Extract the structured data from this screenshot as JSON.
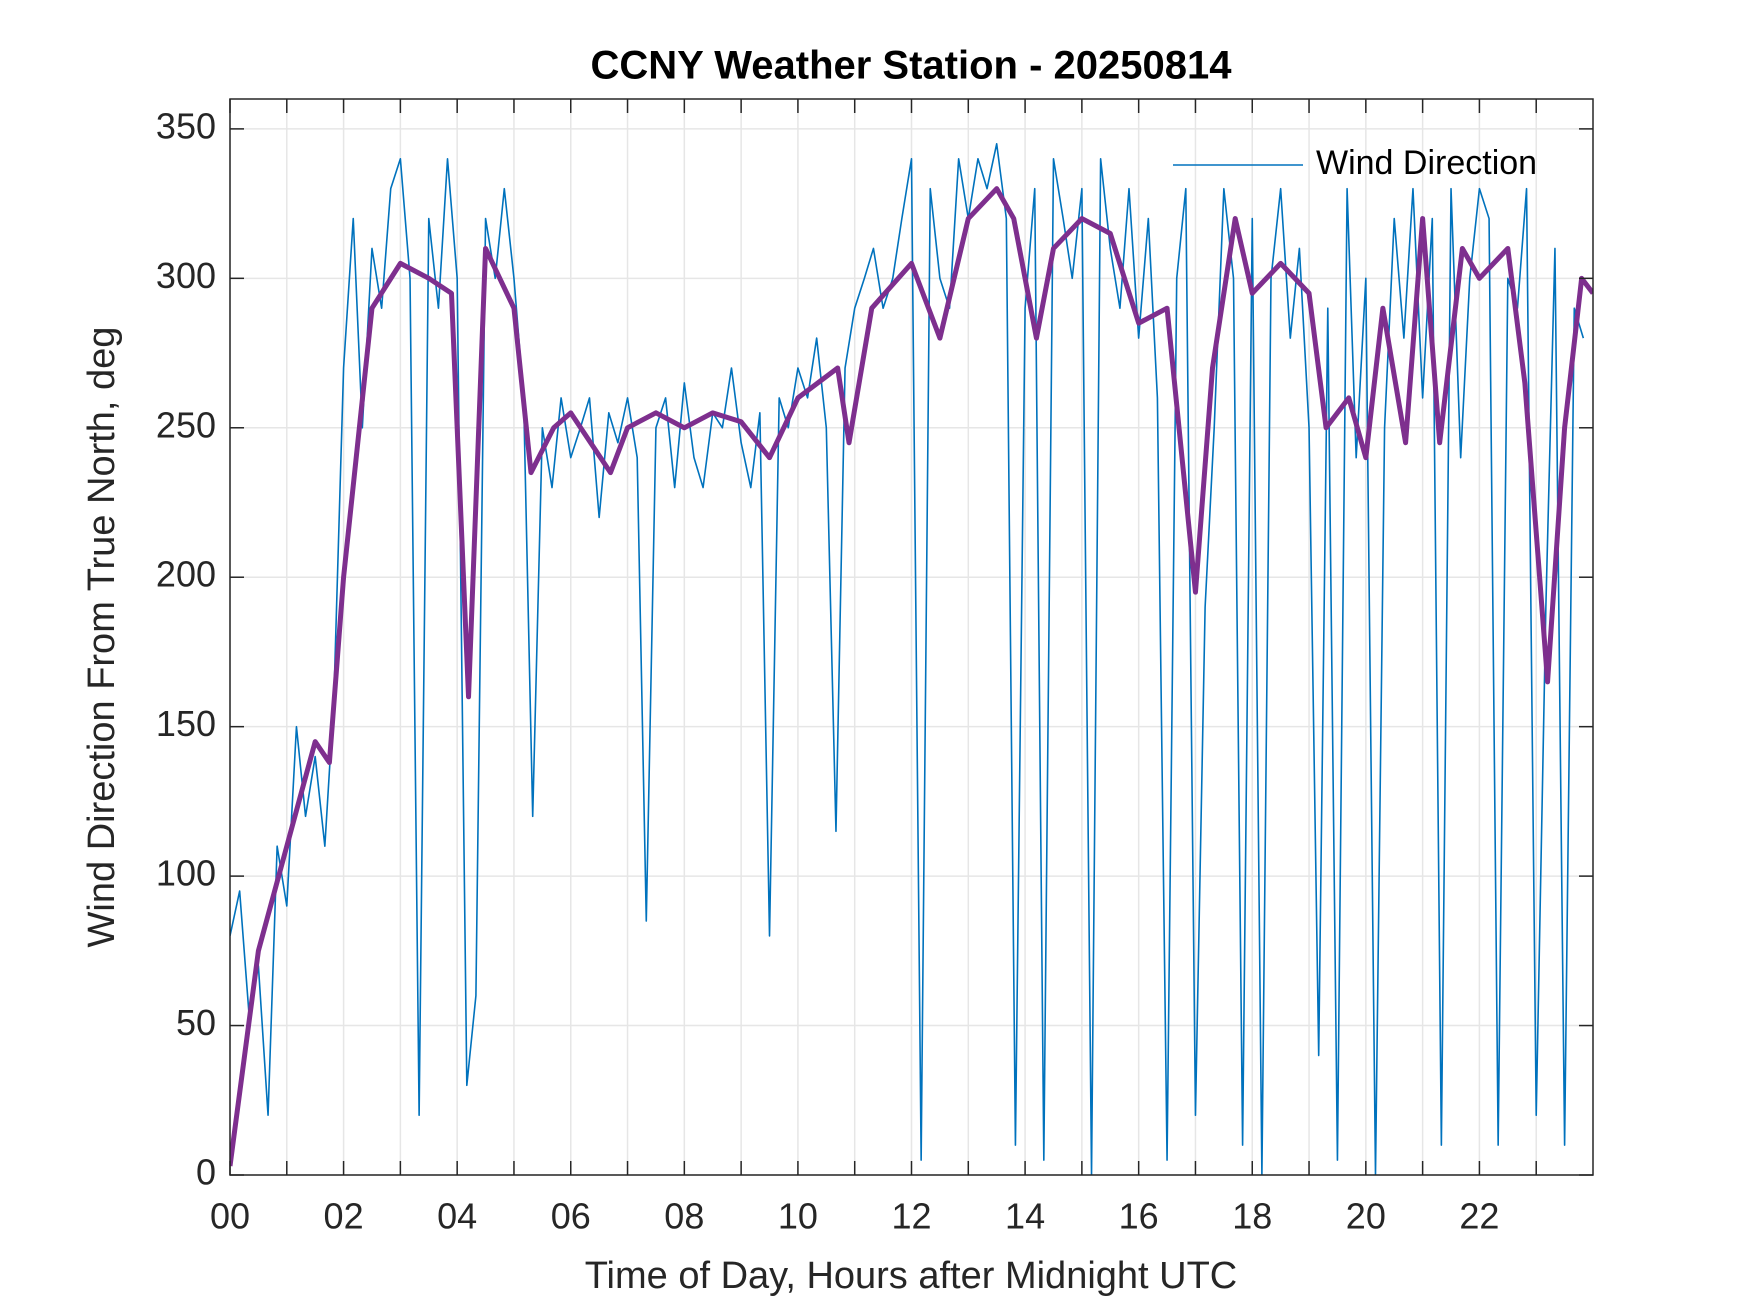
{
  "chart_data": {
    "type": "line",
    "title": "CCNY Weather Station - 20250814",
    "x_label": "Time of Day, Hours after Midnight UTC",
    "y_label": "Wind Direction From True North, deg",
    "xlim": [
      0,
      24
    ],
    "ylim": [
      0,
      360
    ],
    "xticks": [
      {
        "value": 0,
        "label": "00"
      },
      {
        "value": 2,
        "label": "02"
      },
      {
        "value": 4,
        "label": "04"
      },
      {
        "value": 6,
        "label": "06"
      },
      {
        "value": 8,
        "label": "08"
      },
      10,
      12,
      14,
      16,
      18,
      20,
      22
    ],
    "xminorticks": [
      1,
      3,
      5,
      7,
      9,
      11,
      13,
      15,
      17,
      19,
      21,
      23
    ],
    "yticks": [
      0,
      50,
      100,
      150,
      200,
      250,
      300,
      350
    ],
    "grid": true,
    "legend": "upper-right",
    "series": [
      {
        "name": "Wind Direction",
        "color": "#0072BD",
        "width": 1.6,
        "x": [
          0,
          0.17,
          0.33,
          0.5,
          0.67,
          0.83,
          1,
          1.17,
          1.33,
          1.5,
          1.67,
          1.83,
          2,
          2.17,
          2.33,
          2.5,
          2.67,
          2.83,
          3,
          3.17,
          3.33,
          3.5,
          3.67,
          3.83,
          4,
          4.17,
          4.33,
          4.5,
          4.67,
          4.83,
          5,
          5.17,
          5.33,
          5.5,
          5.67,
          5.83,
          6,
          6.17,
          6.33,
          6.5,
          6.67,
          6.83,
          7,
          7.17,
          7.33,
          7.5,
          7.67,
          7.83,
          8,
          8.17,
          8.33,
          8.5,
          8.67,
          8.83,
          9,
          9.17,
          9.33,
          9.5,
          9.67,
          9.83,
          10,
          10.17,
          10.33,
          10.5,
          10.67,
          10.83,
          11,
          11.17,
          11.33,
          11.5,
          11.67,
          11.83,
          12,
          12.17,
          12.33,
          12.5,
          12.67,
          12.83,
          13,
          13.17,
          13.33,
          13.5,
          13.67,
          13.83,
          14,
          14.17,
          14.33,
          14.5,
          14.67,
          14.83,
          15,
          15.17,
          15.33,
          15.5,
          15.67,
          15.83,
          16,
          16.17,
          16.33,
          16.5,
          16.67,
          16.83,
          17,
          17.17,
          17.33,
          17.5,
          17.67,
          17.83,
          18,
          18.17,
          18.33,
          18.5,
          18.67,
          18.83,
          19,
          19.17,
          19.33,
          19.5,
          19.67,
          19.83,
          20,
          20.17,
          20.33,
          20.5,
          20.67,
          20.83,
          21,
          21.17,
          21.33,
          21.5,
          21.67,
          21.83,
          22,
          22.17,
          22.33,
          22.5,
          22.67,
          22.83,
          23,
          23.17,
          23.33,
          23.5,
          23.67,
          23.83
        ],
        "values": [
          80,
          95,
          55,
          70,
          20,
          110,
          90,
          150,
          120,
          140,
          110,
          160,
          270,
          320,
          250,
          310,
          290,
          330,
          340,
          300,
          20,
          320,
          290,
          340,
          300,
          30,
          60,
          320,
          300,
          330,
          300,
          260,
          120,
          250,
          230,
          260,
          240,
          250,
          260,
          220,
          255,
          245,
          260,
          240,
          85,
          250,
          260,
          230,
          265,
          240,
          230,
          255,
          250,
          270,
          245,
          230,
          255,
          80,
          260,
          250,
          270,
          260,
          280,
          250,
          115,
          270,
          290,
          300,
          310,
          290,
          300,
          320,
          340,
          5,
          330,
          300,
          290,
          340,
          320,
          340,
          330,
          345,
          320,
          10,
          290,
          330,
          5,
          340,
          320,
          300,
          330,
          0,
          340,
          310,
          290,
          330,
          280,
          320,
          260,
          5,
          300,
          330,
          20,
          190,
          250,
          330,
          300,
          10,
          320,
          0,
          300,
          330,
          280,
          310,
          250,
          40,
          290,
          5,
          330,
          240,
          300,
          0,
          250,
          320,
          280,
          330,
          260,
          320,
          10,
          330,
          240,
          300,
          330,
          320,
          10,
          300,
          290,
          330,
          20,
          190,
          310,
          10,
          290,
          280
        ]
      },
      {
        "color": "#7E2F8E",
        "width": 5,
        "x": [
          0,
          0.5,
          1,
          1.5,
          1.75,
          2,
          2.5,
          3,
          3.5,
          3.9,
          4.2,
          4.5,
          5,
          5.3,
          5.7,
          6,
          6.7,
          7,
          7.5,
          8,
          8.5,
          9,
          9.5,
          10,
          10.7,
          10.9,
          11.3,
          12,
          12.5,
          13,
          13.5,
          13.8,
          14.2,
          14.5,
          15,
          15.5,
          16,
          16.5,
          17,
          17.3,
          17.7,
          18,
          18.5,
          19,
          19.3,
          19.7,
          20,
          20.3,
          20.7,
          21,
          21.3,
          21.7,
          22,
          22.5,
          22.8,
          23.2,
          23.5,
          23.8,
          24
        ],
        "values": [
          3,
          75,
          110,
          145,
          138,
          200,
          290,
          305,
          300,
          295,
          160,
          310,
          290,
          235,
          250,
          255,
          235,
          250,
          255,
          250,
          255,
          252,
          240,
          260,
          270,
          245,
          290,
          305,
          280,
          320,
          330,
          320,
          280,
          310,
          320,
          315,
          285,
          290,
          195,
          270,
          320,
          295,
          305,
          295,
          250,
          260,
          240,
          290,
          245,
          320,
          245,
          310,
          300,
          310,
          265,
          165,
          250,
          300,
          295
        ]
      }
    ]
  }
}
